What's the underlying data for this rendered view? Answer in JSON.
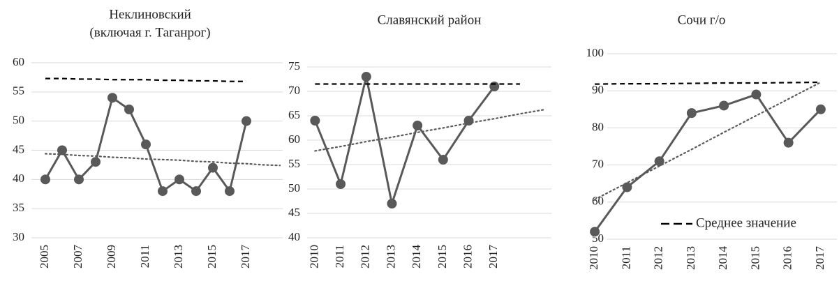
{
  "chart_data": [
    {
      "type": "line",
      "title": [
        "Неклиновский",
        "(включая г. Таганрог)"
      ],
      "categories": [
        "2005",
        null,
        "2007",
        null,
        "2009",
        null,
        "2011",
        null,
        "2013",
        null,
        "2015",
        null,
        "2017",
        null,
        null
      ],
      "ylim": [
        30,
        60
      ],
      "yticks": [
        30,
        35,
        40,
        45,
        50,
        55,
        60
      ],
      "grid": true,
      "series": [
        {
          "color": "#595959",
          "style": "solid",
          "markers": true,
          "values": [
            40,
            45,
            40,
            43,
            54,
            52,
            46,
            38,
            40,
            38,
            42,
            38,
            50,
            null,
            null
          ]
        },
        {
          "color": "#000000",
          "style": "dashed",
          "markers": false,
          "values": [
            57.3,
            57.3,
            57.2,
            57.2,
            57.1,
            57.1,
            57.1,
            57.0,
            57.0,
            56.9,
            56.9,
            56.8,
            56.8,
            null,
            null
          ]
        },
        {
          "color": "#595959",
          "style": "dotted",
          "markers": false,
          "values": [
            44.4,
            44.3,
            44.1,
            44.0,
            43.8,
            43.7,
            43.5,
            43.4,
            43.3,
            43.1,
            43.0,
            42.8,
            42.7,
            42.5,
            42.4
          ]
        }
      ]
    },
    {
      "type": "line",
      "title": "Славянский район",
      "categories": [
        "2010",
        "2011",
        "2012",
        "2013",
        "2014",
        "2015",
        "2016",
        "2017",
        null,
        null
      ],
      "ylim": [
        40,
        75
      ],
      "yticks": [
        40,
        45,
        50,
        55,
        60,
        65,
        70,
        75
      ],
      "grid": true,
      "series": [
        {
          "color": "#595959",
          "style": "solid",
          "markers": true,
          "values": [
            64,
            51,
            73,
            47,
            63,
            56,
            64,
            71,
            null,
            null
          ]
        },
        {
          "color": "#000000",
          "style": "dashed",
          "markers": false,
          "values": [
            71.5,
            71.5,
            71.5,
            71.5,
            71.5,
            71.5,
            71.5,
            71.5,
            71.5,
            null
          ]
        },
        {
          "color": "#595959",
          "style": "dotted",
          "markers": false,
          "values": [
            57.8,
            58.7,
            59.7,
            60.6,
            61.6,
            62.5,
            63.5,
            64.4,
            65.4,
            66.3
          ]
        }
      ]
    },
    {
      "type": "line",
      "title": "Сочи г/о",
      "categories": [
        "2010",
        "2011",
        "2012",
        "2013",
        "2014",
        "2015",
        "2016",
        "2017"
      ],
      "ylim": [
        50,
        100
      ],
      "yticks": [
        50,
        60,
        70,
        80,
        90,
        100
      ],
      "grid": true,
      "legend": "lower right",
      "series": [
        {
          "color": "#595959",
          "style": "solid",
          "markers": true,
          "values": [
            52,
            64,
            71,
            84,
            86,
            89,
            76,
            85
          ]
        },
        {
          "name": "Среднее значение",
          "color": "#000000",
          "style": "dashed",
          "markers": false,
          "values": [
            91.8,
            91.9,
            91.9,
            92.0,
            92.1,
            92.1,
            92.2,
            92.3
          ]
        },
        {
          "color": "#595959",
          "style": "dotted",
          "markers": false,
          "values": [
            60.7,
            65.2,
            69.7,
            74.2,
            78.8,
            83.3,
            87.8,
            92.3
          ]
        }
      ]
    }
  ]
}
